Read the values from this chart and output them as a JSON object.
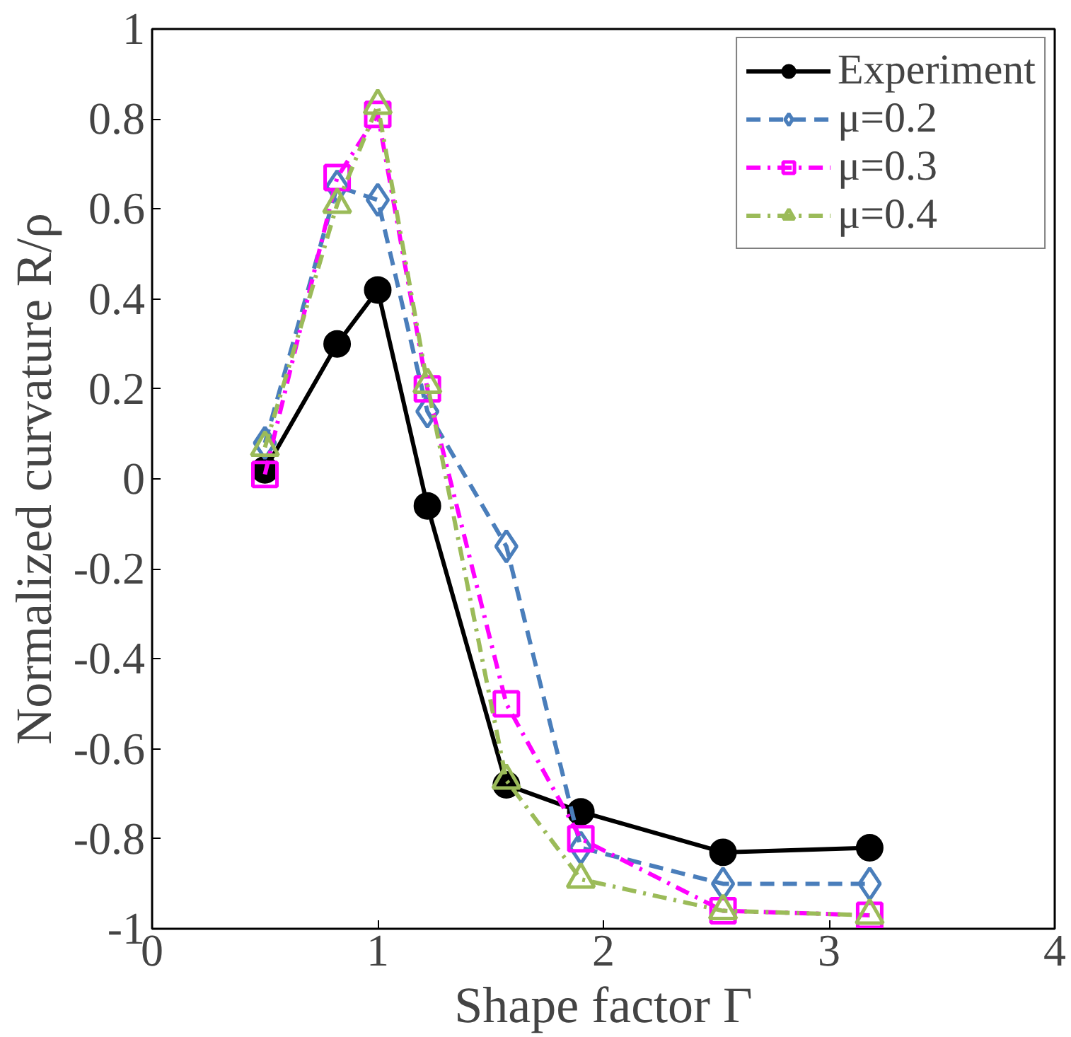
{
  "chart_data": {
    "type": "line",
    "xlabel": "Shape factor Γ",
    "ylabel": "Normalized curvature R/ρ",
    "xlim": [
      0,
      4
    ],
    "ylim": [
      -1,
      1
    ],
    "xticks": [
      0,
      1,
      2,
      3,
      4
    ],
    "yticks": [
      -1,
      -0.8,
      -0.6,
      -0.4,
      -0.2,
      0,
      0.2,
      0.4,
      0.6,
      0.8,
      1
    ],
    "grid": false,
    "legend": "top right",
    "x": [
      0.5,
      0.82,
      1.0,
      1.22,
      1.57,
      1.9,
      2.53,
      3.18
    ],
    "series": [
      {
        "name": "Experiment",
        "color": "#000000",
        "marker": "circle",
        "line_style": "solid",
        "values": [
          0.02,
          0.3,
          0.42,
          -0.06,
          -0.68,
          -0.74,
          -0.83,
          -0.82
        ]
      },
      {
        "name": "μ=0.2",
        "color": "#4a7ebb",
        "marker": "diamond",
        "line_style": "dashed",
        "values": [
          0.08,
          0.65,
          0.62,
          0.15,
          -0.15,
          -0.82,
          -0.9,
          -0.9
        ]
      },
      {
        "name": "μ=0.3",
        "color": "#ff00ff",
        "marker": "square",
        "line_style": "dashdot",
        "values": [
          0.01,
          0.67,
          0.81,
          0.2,
          -0.5,
          -0.8,
          -0.96,
          -0.97
        ]
      },
      {
        "name": "μ=0.4",
        "color": "#9bbb59",
        "marker": "triangle",
        "line_style": "dashdot",
        "values": [
          0.07,
          0.61,
          0.83,
          0.21,
          -0.67,
          -0.89,
          -0.96,
          -0.97
        ]
      }
    ]
  }
}
